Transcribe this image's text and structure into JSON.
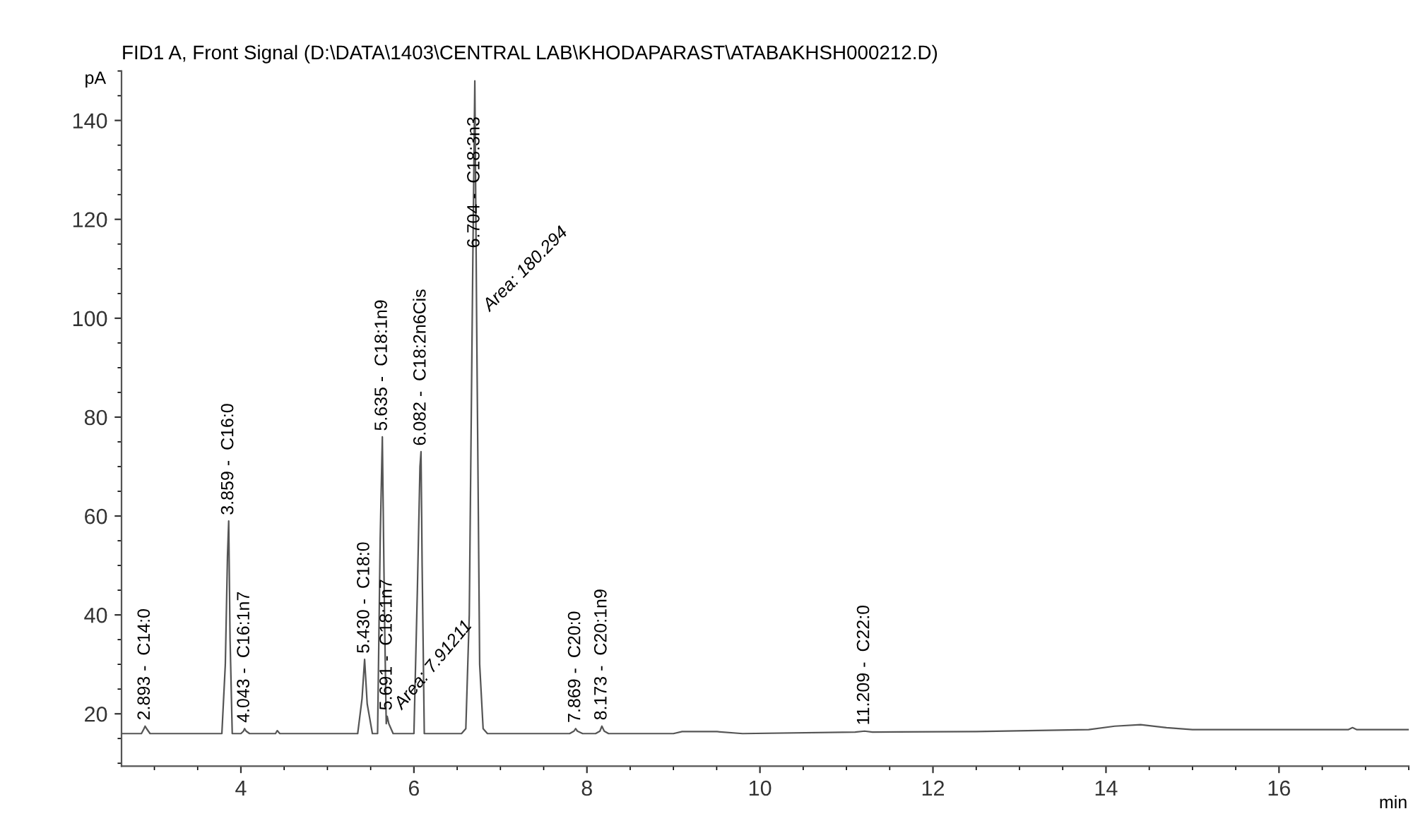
{
  "chart_data": {
    "type": "line",
    "title": "FID1 A, Front Signal (D:\\DATA\\1403\\CENTRAL LAB\\KHODAPARAST\\ATABAKHSH000212.D)",
    "xlabel": "min",
    "ylabel": "pA",
    "series": [
      {
        "color": "#555555",
        "x": [
          2.62,
          2.85,
          2.88,
          2.893,
          2.91,
          2.95,
          3.78,
          3.82,
          3.845,
          3.859,
          3.875,
          3.9,
          4.0,
          4.03,
          4.043,
          4.06,
          4.1,
          4.4,
          4.42,
          4.45,
          5.35,
          5.4,
          5.43,
          5.46,
          5.52,
          5.58,
          5.61,
          5.635,
          5.66,
          5.68,
          5.691,
          5.71,
          5.76,
          6.0,
          6.04,
          6.07,
          6.082,
          6.095,
          6.12,
          6.17,
          6.55,
          6.6,
          6.64,
          6.68,
          6.704,
          6.725,
          6.76,
          6.8,
          6.85,
          7.8,
          7.85,
          7.869,
          7.89,
          7.95,
          8.1,
          8.15,
          8.173,
          8.2,
          8.25,
          9.0,
          9.1,
          9.5,
          9.8,
          11.1,
          11.209,
          11.3,
          12.5,
          13.8,
          14.1,
          14.4,
          14.7,
          15.0,
          16.8,
          16.85,
          16.9,
          17.5
        ],
        "values": [
          16,
          16,
          17,
          17.5,
          17,
          16,
          16,
          30,
          52,
          59,
          35,
          16,
          16,
          16.5,
          17,
          16.5,
          16,
          16,
          16.6,
          16,
          16,
          23,
          31,
          22,
          16,
          16,
          55,
          76,
          40,
          18,
          19.5,
          18,
          16,
          16,
          45,
          70,
          73,
          50,
          16,
          16,
          16,
          17,
          40,
          110,
          148,
          100,
          30,
          17,
          16,
          16,
          16.5,
          17,
          16.5,
          16,
          16,
          16.5,
          17.5,
          16.5,
          16,
          16,
          16.4,
          16.4,
          16,
          16.3,
          16.5,
          16.3,
          16.4,
          16.8,
          17.5,
          17.8,
          17.2,
          16.8,
          16.8,
          17.2,
          16.8,
          16.8
        ]
      }
    ],
    "xlim": [
      2.62,
      17.5
    ],
    "ylim": [
      9.4,
      150
    ],
    "xticks": [
      4,
      6,
      8,
      10,
      12,
      14,
      16
    ],
    "yticks": [
      20,
      40,
      60,
      80,
      100,
      120,
      140
    ],
    "grid": false,
    "legend": false,
    "marker": "none",
    "line_style": "solid",
    "annotations": [
      {
        "text": "2.893 -  C14:0",
        "x": 2.893,
        "y": 17.5
      },
      {
        "text": "3.859 -  C16:0",
        "x": 3.859,
        "y": 59
      },
      {
        "text": "4.043 -  C16:1n7",
        "x": 4.043,
        "y": 17
      },
      {
        "text": "5.430 -  C18:0",
        "x": 5.43,
        "y": 31
      },
      {
        "text": "5.635 -  C18:1n9",
        "x": 5.635,
        "y": 76
      },
      {
        "text": "5.691 -  C18:1n7",
        "x": 5.691,
        "y": 19.5
      },
      {
        "text": "6.082 -  C18:2n6Cis",
        "x": 6.082,
        "y": 73
      },
      {
        "text": "6.704 -  C18:3n3",
        "x": 6.704,
        "y": 113
      },
      {
        "text": "7.869 -  C20:0",
        "x": 7.869,
        "y": 17
      },
      {
        "text": "8.173 -  C20:1n9",
        "x": 8.173,
        "y": 17.5
      },
      {
        "text": "11.209 -  C22:0",
        "x": 11.209,
        "y": 16.5
      },
      {
        "text": "Area: 180.294",
        "x": 6.704,
        "y": 100
      },
      {
        "text": "Area: 7.91211",
        "x": 5.691,
        "y": 19.5
      }
    ]
  }
}
